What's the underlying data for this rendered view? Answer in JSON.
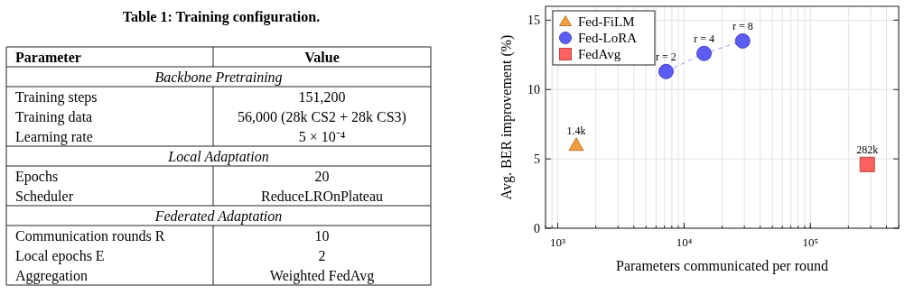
{
  "chart_data": [
    {
      "type": "other",
      "title": "Table 1: Training configuration.",
      "annotations": [
        "Parameter",
        "Value",
        "Backbone Pretraining",
        "Training steps",
        "151,200",
        "Training data",
        "56,000 (28k CS2 + 28k CS3)",
        "Learning rate",
        "5 × 10⁻⁴",
        "Local Adaptation",
        "Epochs",
        "20",
        "Scheduler",
        "ReduceLROnPlateau",
        "Federated Adaptation",
        "Communication rounds R",
        "10",
        "Local epochs E",
        "2",
        "Aggregation",
        "Weighted FedAvg"
      ]
    },
    {
      "type": "scatter",
      "xlabel": "Parameters communicated per round",
      "ylabel": "Avg. BER improvement (%)",
      "log": "x",
      "xlim": [
        800,
        500000
      ],
      "xticks": [
        {
          "value": 1000,
          "label": "10³"
        },
        {
          "value": 10000,
          "label": "10⁴"
        },
        {
          "value": 100000,
          "label": "10⁵"
        }
      ],
      "ylim": [
        0,
        16
      ],
      "yticks": [
        0,
        5,
        10,
        15
      ],
      "grid": true,
      "legend": "top left",
      "series": [
        {
          "name": "Fed-FiLM",
          "color": "#f5a040",
          "marker": "triangle",
          "x": [
            1400
          ],
          "values": [
            6.0
          ]
        },
        {
          "name": "Fed-LoRA",
          "type": "line",
          "color": "#5c5cf5",
          "marker": "circle",
          "line_style": "dashed",
          "x": [
            7200,
            14400,
            29100
          ],
          "values": [
            11.3,
            12.6,
            13.5
          ]
        },
        {
          "name": "FedAvg",
          "color": "#ff6060",
          "marker": "square",
          "x": [
            282000
          ],
          "values": [
            4.6
          ]
        }
      ],
      "annotations": [
        {
          "text": "1.4k",
          "x": 1400,
          "y": 6.0
        },
        {
          "text": "r = 2",
          "x": 7200,
          "y": 11.3
        },
        {
          "text": "r = 4",
          "x": 14400,
          "y": 12.6
        },
        {
          "text": "r = 8",
          "x": 29100,
          "y": 13.5
        },
        {
          "text": "282k",
          "x": 282000,
          "y": 4.6
        }
      ]
    }
  ]
}
